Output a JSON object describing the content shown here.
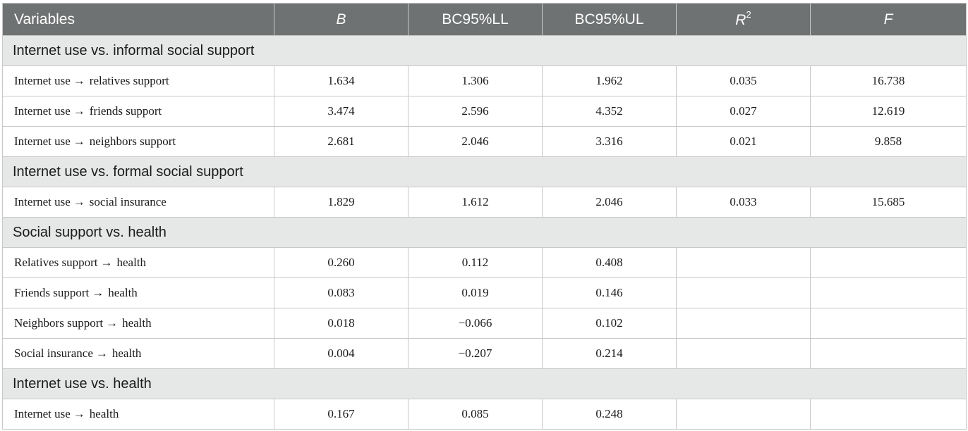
{
  "header": {
    "variables": "Variables",
    "b": "B",
    "ll": "BC95%LL",
    "ul": "BC95%UL",
    "r2_base": "R",
    "r2_sup": "2",
    "f": "F"
  },
  "arrow_glyph": "→",
  "sections": [
    {
      "title": "Internet use vs. informal social support",
      "rows": [
        {
          "from": "Internet use",
          "to": "relatives support",
          "b": "1.634",
          "ll": "1.306",
          "ul": "1.962",
          "r2": "0.035",
          "f": "16.738"
        },
        {
          "from": "Internet use",
          "to": "friends support",
          "b": "3.474",
          "ll": "2.596",
          "ul": "4.352",
          "r2": "0.027",
          "f": "12.619"
        },
        {
          "from": "Internet use",
          "to": "neighbors support",
          "b": "2.681",
          "ll": "2.046",
          "ul": "3.316",
          "r2": "0.021",
          "f": "9.858"
        }
      ]
    },
    {
      "title": "Internet use vs. formal social support",
      "rows": [
        {
          "from": "Internet use",
          "to": "social insurance",
          "b": "1.829",
          "ll": "1.612",
          "ul": "2.046",
          "r2": "0.033",
          "f": "15.685"
        }
      ]
    },
    {
      "title": "Social support vs. health",
      "rows": [
        {
          "from": "Relatives support",
          "to": "health",
          "b": "0.260",
          "ll": "0.112",
          "ul": "0.408",
          "r2": "",
          "f": ""
        },
        {
          "from": "Friends support",
          "to": "health",
          "b": "0.083",
          "ll": "0.019",
          "ul": "0.146",
          "r2": "",
          "f": ""
        },
        {
          "from": "Neighbors support",
          "to": "health",
          "b": "0.018",
          "ll": "−0.066",
          "ul": "0.102",
          "r2": "",
          "f": ""
        },
        {
          "from": "Social insurance",
          "to": "health",
          "b": "0.004",
          "ll": "−0.207",
          "ul": "0.214",
          "r2": "",
          "f": ""
        }
      ]
    },
    {
      "title": "Internet use vs. health",
      "rows": [
        {
          "from": "Internet use",
          "to": "health",
          "b": "0.167",
          "ll": "0.085",
          "ul": "0.248",
          "r2": "",
          "f": ""
        }
      ]
    }
  ]
}
